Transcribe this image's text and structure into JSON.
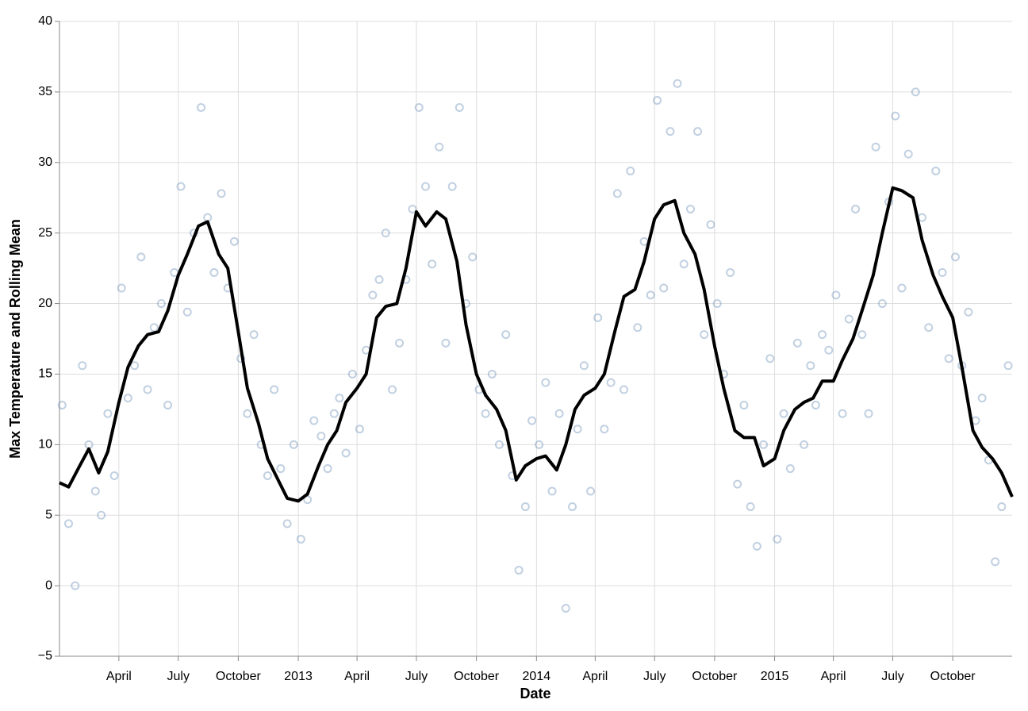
{
  "chart_data": {
    "type": "layered",
    "x_label": "Date",
    "y_label": "Max Temperature and Rolling Mean",
    "grid": true,
    "xlim": [
      "2012-01-01",
      "2015-12-31"
    ],
    "ylim": [
      -5,
      40
    ],
    "yticks": [
      {
        "value": -5,
        "label": "−5"
      },
      0,
      5,
      10,
      15,
      20,
      25,
      30,
      35,
      40
    ],
    "xticks": [
      {
        "value": "2012-04-01",
        "label": "April"
      },
      {
        "value": "2012-07-01",
        "label": "July"
      },
      {
        "value": "2012-10-01",
        "label": "October"
      },
      {
        "value": "2013-01-01",
        "label": "2013"
      },
      {
        "value": "2013-04-01",
        "label": "April"
      },
      {
        "value": "2013-07-01",
        "label": "July"
      },
      {
        "value": "2013-10-01",
        "label": "October"
      },
      {
        "value": "2014-01-01",
        "label": "2014"
      },
      {
        "value": "2014-04-01",
        "label": "April"
      },
      {
        "value": "2014-07-01",
        "label": "July"
      },
      {
        "value": "2014-10-01",
        "label": "October"
      },
      {
        "value": "2015-01-01",
        "label": "2015"
      },
      {
        "value": "2015-04-01",
        "label": "April"
      },
      {
        "value": "2015-07-01",
        "label": "July"
      },
      {
        "value": "2015-10-01",
        "label": "October"
      }
    ],
    "series": [
      {
        "type": "scatter",
        "color": "#4c78a8",
        "x": [
          "2012-01-05",
          "2012-01-15",
          "2012-01-25",
          "2012-02-05",
          "2012-02-15",
          "2012-02-25",
          "2012-03-05",
          "2012-03-15",
          "2012-03-25",
          "2012-04-05",
          "2012-04-15",
          "2012-04-25",
          "2012-05-05",
          "2012-05-15",
          "2012-05-25",
          "2012-06-05",
          "2012-06-15",
          "2012-06-25",
          "2012-07-05",
          "2012-07-15",
          "2012-07-25",
          "2012-08-05",
          "2012-08-15",
          "2012-08-25",
          "2012-09-05",
          "2012-09-15",
          "2012-09-25",
          "2012-10-05",
          "2012-10-15",
          "2012-10-25",
          "2012-11-05",
          "2012-11-15",
          "2012-11-25",
          "2012-12-05",
          "2012-12-15",
          "2012-12-25",
          "2013-01-05",
          "2013-01-15",
          "2013-01-25",
          "2013-02-05",
          "2013-02-15",
          "2013-02-25",
          "2013-03-05",
          "2013-03-15",
          "2013-03-25",
          "2013-04-05",
          "2013-04-15",
          "2013-04-25",
          "2013-05-05",
          "2013-05-15",
          "2013-05-25",
          "2013-06-05",
          "2013-06-15",
          "2013-06-25",
          "2013-07-05",
          "2013-07-15",
          "2013-07-25",
          "2013-08-05",
          "2013-08-15",
          "2013-08-25",
          "2013-09-05",
          "2013-09-15",
          "2013-09-25",
          "2013-10-05",
          "2013-10-15",
          "2013-10-25",
          "2013-11-05",
          "2013-11-15",
          "2013-11-25",
          "2013-12-05",
          "2013-12-15",
          "2013-12-25",
          "2014-01-05",
          "2014-01-15",
          "2014-01-25",
          "2014-02-05",
          "2014-02-15",
          "2014-02-25",
          "2014-03-05",
          "2014-03-15",
          "2014-03-25",
          "2014-04-05",
          "2014-04-15",
          "2014-04-25",
          "2014-05-05",
          "2014-05-15",
          "2014-05-25",
          "2014-06-05",
          "2014-06-15",
          "2014-06-25",
          "2014-07-05",
          "2014-07-15",
          "2014-07-25",
          "2014-08-05",
          "2014-08-15",
          "2014-08-25",
          "2014-09-05",
          "2014-09-15",
          "2014-09-25",
          "2014-10-05",
          "2014-10-15",
          "2014-10-25",
          "2014-11-05",
          "2014-11-15",
          "2014-11-25",
          "2014-12-05",
          "2014-12-15",
          "2014-12-25",
          "2015-01-05",
          "2015-01-15",
          "2015-01-25",
          "2015-02-05",
          "2015-02-15",
          "2015-02-25",
          "2015-03-05",
          "2015-03-15",
          "2015-03-25",
          "2015-04-05",
          "2015-04-15",
          "2015-04-25",
          "2015-05-05",
          "2015-05-15",
          "2015-05-25",
          "2015-06-05",
          "2015-06-15",
          "2015-06-25",
          "2015-07-05",
          "2015-07-15",
          "2015-07-25",
          "2015-08-05",
          "2015-08-15",
          "2015-08-25",
          "2015-09-05",
          "2015-09-15",
          "2015-09-25",
          "2015-10-05",
          "2015-10-15",
          "2015-10-25",
          "2015-11-05",
          "2015-11-15",
          "2015-11-25",
          "2015-12-05",
          "2015-12-15",
          "2015-12-25"
        ],
        "values": [
          12.8,
          4.4,
          0.0,
          15.6,
          10,
          6.7,
          5,
          12.2,
          7.8,
          21.1,
          13.3,
          15.6,
          23.3,
          13.9,
          18.3,
          20,
          12.8,
          22.2,
          28.3,
          19.4,
          25,
          33.9,
          26.1,
          22.2,
          27.8,
          21.1,
          24.4,
          16.1,
          12.2,
          17.8,
          10,
          7.8,
          13.9,
          8.3,
          4.4,
          10,
          3.3,
          6.1,
          11.7,
          10.6,
          8.3,
          12.2,
          13.3,
          9.4,
          15,
          11.1,
          16.7,
          20.6,
          21.7,
          25,
          13.9,
          17.2,
          21.7,
          26.7,
          33.9,
          28.3,
          22.8,
          31.1,
          17.2,
          28.3,
          33.9,
          20,
          23.3,
          13.9,
          12.2,
          15,
          10,
          17.8,
          7.8,
          1.1,
          5.6,
          11.7,
          10,
          14.4,
          6.7,
          12.2,
          -1.6,
          5.6,
          11.1,
          15.6,
          6.7,
          19,
          11.1,
          14.4,
          27.8,
          13.9,
          29.4,
          18.3,
          24.4,
          20.6,
          34.4,
          21.1,
          32.2,
          35.6,
          22.8,
          26.7,
          32.2,
          17.8,
          25.6,
          20,
          15,
          22.2,
          7.2,
          12.8,
          5.6,
          2.8,
          10,
          16.1,
          3.3,
          12.2,
          8.3,
          17.2,
          10,
          15.6,
          12.8,
          17.8,
          16.7,
          20.6,
          12.2,
          18.9,
          26.7,
          17.8,
          12.2,
          31.1,
          20,
          27.2,
          33.3,
          21.1,
          30.6,
          35,
          26.1,
          18.3,
          29.4,
          22.2,
          16.1,
          23.3,
          15.6,
          19.4,
          11.7,
          13.3,
          8.9,
          1.7,
          5.6,
          15.6
        ]
      },
      {
        "type": "line",
        "color": "#000000",
        "x": [
          "2012-01-01",
          "2012-01-15",
          "2012-02-01",
          "2012-02-15",
          "2012-03-01",
          "2012-03-15",
          "2012-04-01",
          "2012-04-15",
          "2012-05-01",
          "2012-05-15",
          "2012-06-01",
          "2012-06-15",
          "2012-07-01",
          "2012-07-15",
          "2012-08-01",
          "2012-08-15",
          "2012-09-01",
          "2012-09-15",
          "2012-10-01",
          "2012-10-15",
          "2012-11-01",
          "2012-11-15",
          "2012-12-01",
          "2012-12-15",
          "2013-01-01",
          "2013-01-15",
          "2013-02-01",
          "2013-02-15",
          "2013-03-01",
          "2013-03-15",
          "2013-04-01",
          "2013-04-15",
          "2013-05-01",
          "2013-05-15",
          "2013-06-01",
          "2013-06-15",
          "2013-07-01",
          "2013-07-15",
          "2013-08-01",
          "2013-08-15",
          "2013-09-01",
          "2013-09-15",
          "2013-10-01",
          "2013-10-15",
          "2013-11-01",
          "2013-11-15",
          "2013-12-01",
          "2013-12-15",
          "2014-01-01",
          "2014-01-15",
          "2014-02-01",
          "2014-02-15",
          "2014-03-01",
          "2014-03-15",
          "2014-04-01",
          "2014-04-15",
          "2014-05-01",
          "2014-05-15",
          "2014-06-01",
          "2014-06-15",
          "2014-07-01",
          "2014-07-15",
          "2014-08-01",
          "2014-08-15",
          "2014-09-01",
          "2014-09-15",
          "2014-10-01",
          "2014-10-15",
          "2014-11-01",
          "2014-11-15",
          "2014-12-01",
          "2014-12-15",
          "2015-01-01",
          "2015-01-15",
          "2015-02-01",
          "2015-02-15",
          "2015-03-01",
          "2015-03-15",
          "2015-04-01",
          "2015-04-15",
          "2015-05-01",
          "2015-05-15",
          "2015-06-01",
          "2015-06-15",
          "2015-07-01",
          "2015-07-15",
          "2015-08-01",
          "2015-08-15",
          "2015-09-01",
          "2015-09-15",
          "2015-10-01",
          "2015-10-15",
          "2015-11-01",
          "2015-11-15",
          "2015-12-01",
          "2015-12-15",
          "2015-12-31"
        ],
        "values": [
          7.3,
          7,
          8.5,
          9.7,
          8,
          9.5,
          13,
          15.5,
          17,
          17.8,
          18,
          19.5,
          22,
          23.5,
          25.5,
          25.8,
          23.5,
          22.5,
          18,
          14,
          11.5,
          9,
          7.5,
          6.2,
          6,
          6.5,
          8.5,
          10,
          11,
          13,
          14,
          15,
          19,
          19.8,
          20,
          22.5,
          26.5,
          25.5,
          26.5,
          26,
          23,
          18.5,
          15,
          13.5,
          12.5,
          11,
          7.5,
          8.5,
          9,
          9.2,
          8.2,
          10,
          12.5,
          13.5,
          14,
          15,
          18,
          20.5,
          21,
          23,
          26,
          27,
          27.3,
          25,
          23.5,
          21,
          17,
          14,
          11,
          10.5,
          10.5,
          8.5,
          9,
          11,
          12.5,
          13,
          13.3,
          14.5,
          14.5,
          16,
          17.5,
          19.5,
          22,
          25,
          28.2,
          28,
          27.5,
          24.5,
          22,
          20.5,
          19,
          15.5,
          11,
          9.8,
          9,
          8,
          6.3
        ]
      }
    ]
  }
}
